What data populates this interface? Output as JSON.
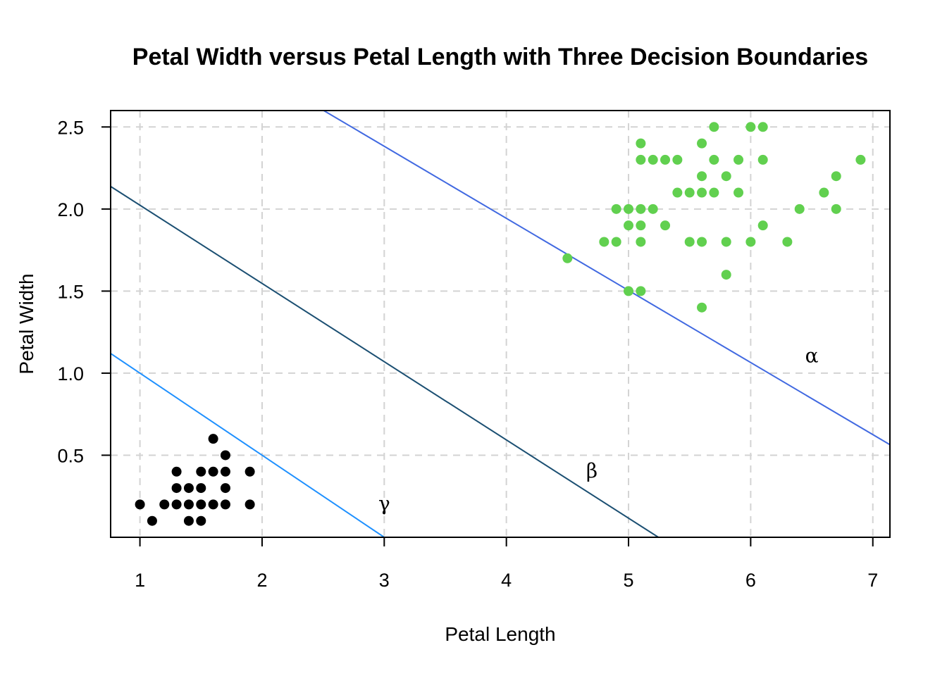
{
  "chart_data": {
    "type": "scatter",
    "title": "Petal Width versus Petal Length with Three Decision Boundaries",
    "xlabel": "Petal Length",
    "ylabel": "Petal Width",
    "xlim": [
      0.76,
      7.14
    ],
    "ylim": [
      0.0,
      2.6
    ],
    "x_ticks": [
      1,
      2,
      3,
      4,
      5,
      6,
      7
    ],
    "y_ticks": [
      0.5,
      1.0,
      1.5,
      2.0,
      2.5
    ],
    "x_tick_labels": [
      "1",
      "2",
      "3",
      "4",
      "5",
      "6",
      "7"
    ],
    "y_tick_labels": [
      "0.5",
      "1.0",
      "1.5",
      "2.0",
      "2.5"
    ],
    "grid": true,
    "series": [
      {
        "color": "#000000",
        "points": [
          [
            1.0,
            0.2
          ],
          [
            1.1,
            0.1
          ],
          [
            1.2,
            0.2
          ],
          [
            1.3,
            0.2
          ],
          [
            1.3,
            0.3
          ],
          [
            1.3,
            0.4
          ],
          [
            1.4,
            0.1
          ],
          [
            1.4,
            0.2
          ],
          [
            1.4,
            0.3
          ],
          [
            1.5,
            0.1
          ],
          [
            1.5,
            0.2
          ],
          [
            1.5,
            0.3
          ],
          [
            1.5,
            0.4
          ],
          [
            1.6,
            0.2
          ],
          [
            1.6,
            0.4
          ],
          [
            1.6,
            0.6
          ],
          [
            1.7,
            0.2
          ],
          [
            1.7,
            0.3
          ],
          [
            1.7,
            0.4
          ],
          [
            1.7,
            0.5
          ],
          [
            1.9,
            0.2
          ],
          [
            1.9,
            0.4
          ]
        ]
      },
      {
        "color": "#61D04F",
        "points": [
          [
            4.5,
            1.7
          ],
          [
            4.8,
            1.8
          ],
          [
            4.9,
            1.8
          ],
          [
            4.9,
            2.0
          ],
          [
            5.0,
            1.5
          ],
          [
            5.0,
            1.9
          ],
          [
            5.0,
            2.0
          ],
          [
            5.1,
            1.5
          ],
          [
            5.1,
            1.8
          ],
          [
            5.1,
            1.9
          ],
          [
            5.1,
            2.0
          ],
          [
            5.1,
            2.3
          ],
          [
            5.1,
            2.4
          ],
          [
            5.2,
            2.0
          ],
          [
            5.2,
            2.3
          ],
          [
            5.3,
            1.9
          ],
          [
            5.3,
            2.3
          ],
          [
            5.4,
            2.1
          ],
          [
            5.4,
            2.3
          ],
          [
            5.5,
            1.8
          ],
          [
            5.5,
            2.1
          ],
          [
            5.6,
            1.4
          ],
          [
            5.6,
            1.8
          ],
          [
            5.6,
            2.1
          ],
          [
            5.6,
            2.2
          ],
          [
            5.6,
            2.4
          ],
          [
            5.7,
            2.1
          ],
          [
            5.7,
            2.3
          ],
          [
            5.7,
            2.5
          ],
          [
            5.8,
            1.6
          ],
          [
            5.8,
            1.8
          ],
          [
            5.8,
            2.2
          ],
          [
            5.9,
            2.1
          ],
          [
            5.9,
            2.3
          ],
          [
            6.0,
            1.8
          ],
          [
            6.0,
            2.5
          ],
          [
            6.1,
            1.9
          ],
          [
            6.1,
            2.3
          ],
          [
            6.1,
            2.5
          ],
          [
            6.3,
            1.8
          ],
          [
            6.4,
            2.0
          ],
          [
            6.6,
            2.1
          ],
          [
            6.7,
            2.0
          ],
          [
            6.7,
            2.2
          ],
          [
            6.9,
            2.3
          ]
        ]
      }
    ],
    "boundaries": [
      {
        "label": "α",
        "color": "#4169E1",
        "intercept": 3.7,
        "slope": -0.4392,
        "label_x": 6.5,
        "label_y": 1.1
      },
      {
        "label": "β",
        "color": "#1B4F72",
        "intercept": 2.5,
        "slope": -0.4767,
        "label_x": 4.7,
        "label_y": 0.4
      },
      {
        "label": "γ",
        "color": "#1E90FF",
        "intercept": 1.5,
        "slope": -0.5,
        "label_x": 3.0,
        "label_y": 0.2
      }
    ]
  }
}
